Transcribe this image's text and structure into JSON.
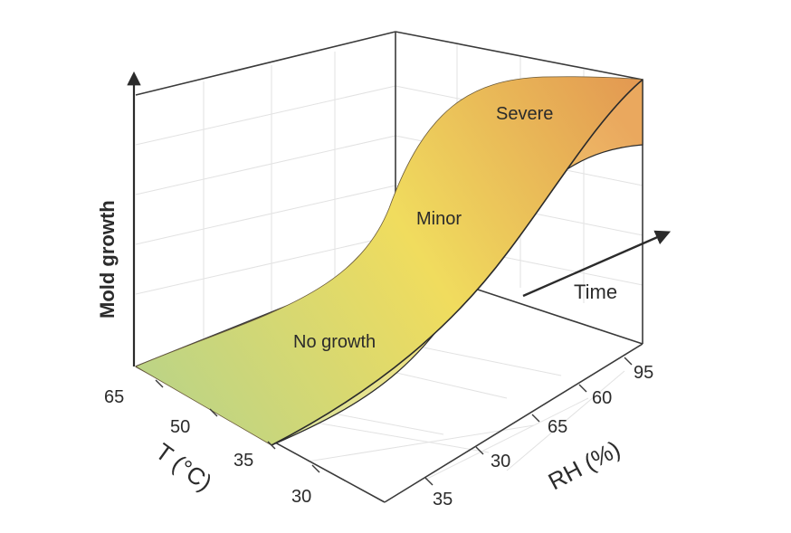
{
  "chart_data": {
    "type": "surface-3d",
    "axes": {
      "z": {
        "label": "Mold growth"
      },
      "temperature": {
        "label": "T (°C)",
        "ticks": [
          "65",
          "50",
          "35",
          "30"
        ]
      },
      "humidity": {
        "label": "RH (%)",
        "ticks": [
          "35",
          "30",
          "65",
          "60",
          "95"
        ]
      },
      "time": {
        "label": "Time"
      }
    },
    "regions": [
      {
        "name": "No growth",
        "level": 0.0,
        "color": "#b6d38a"
      },
      {
        "name": "Minor",
        "level": 0.5,
        "color": "#f0dc5e"
      },
      {
        "name": "Severe",
        "level": 1.0,
        "color": "#e39a52"
      }
    ],
    "grid": true
  }
}
